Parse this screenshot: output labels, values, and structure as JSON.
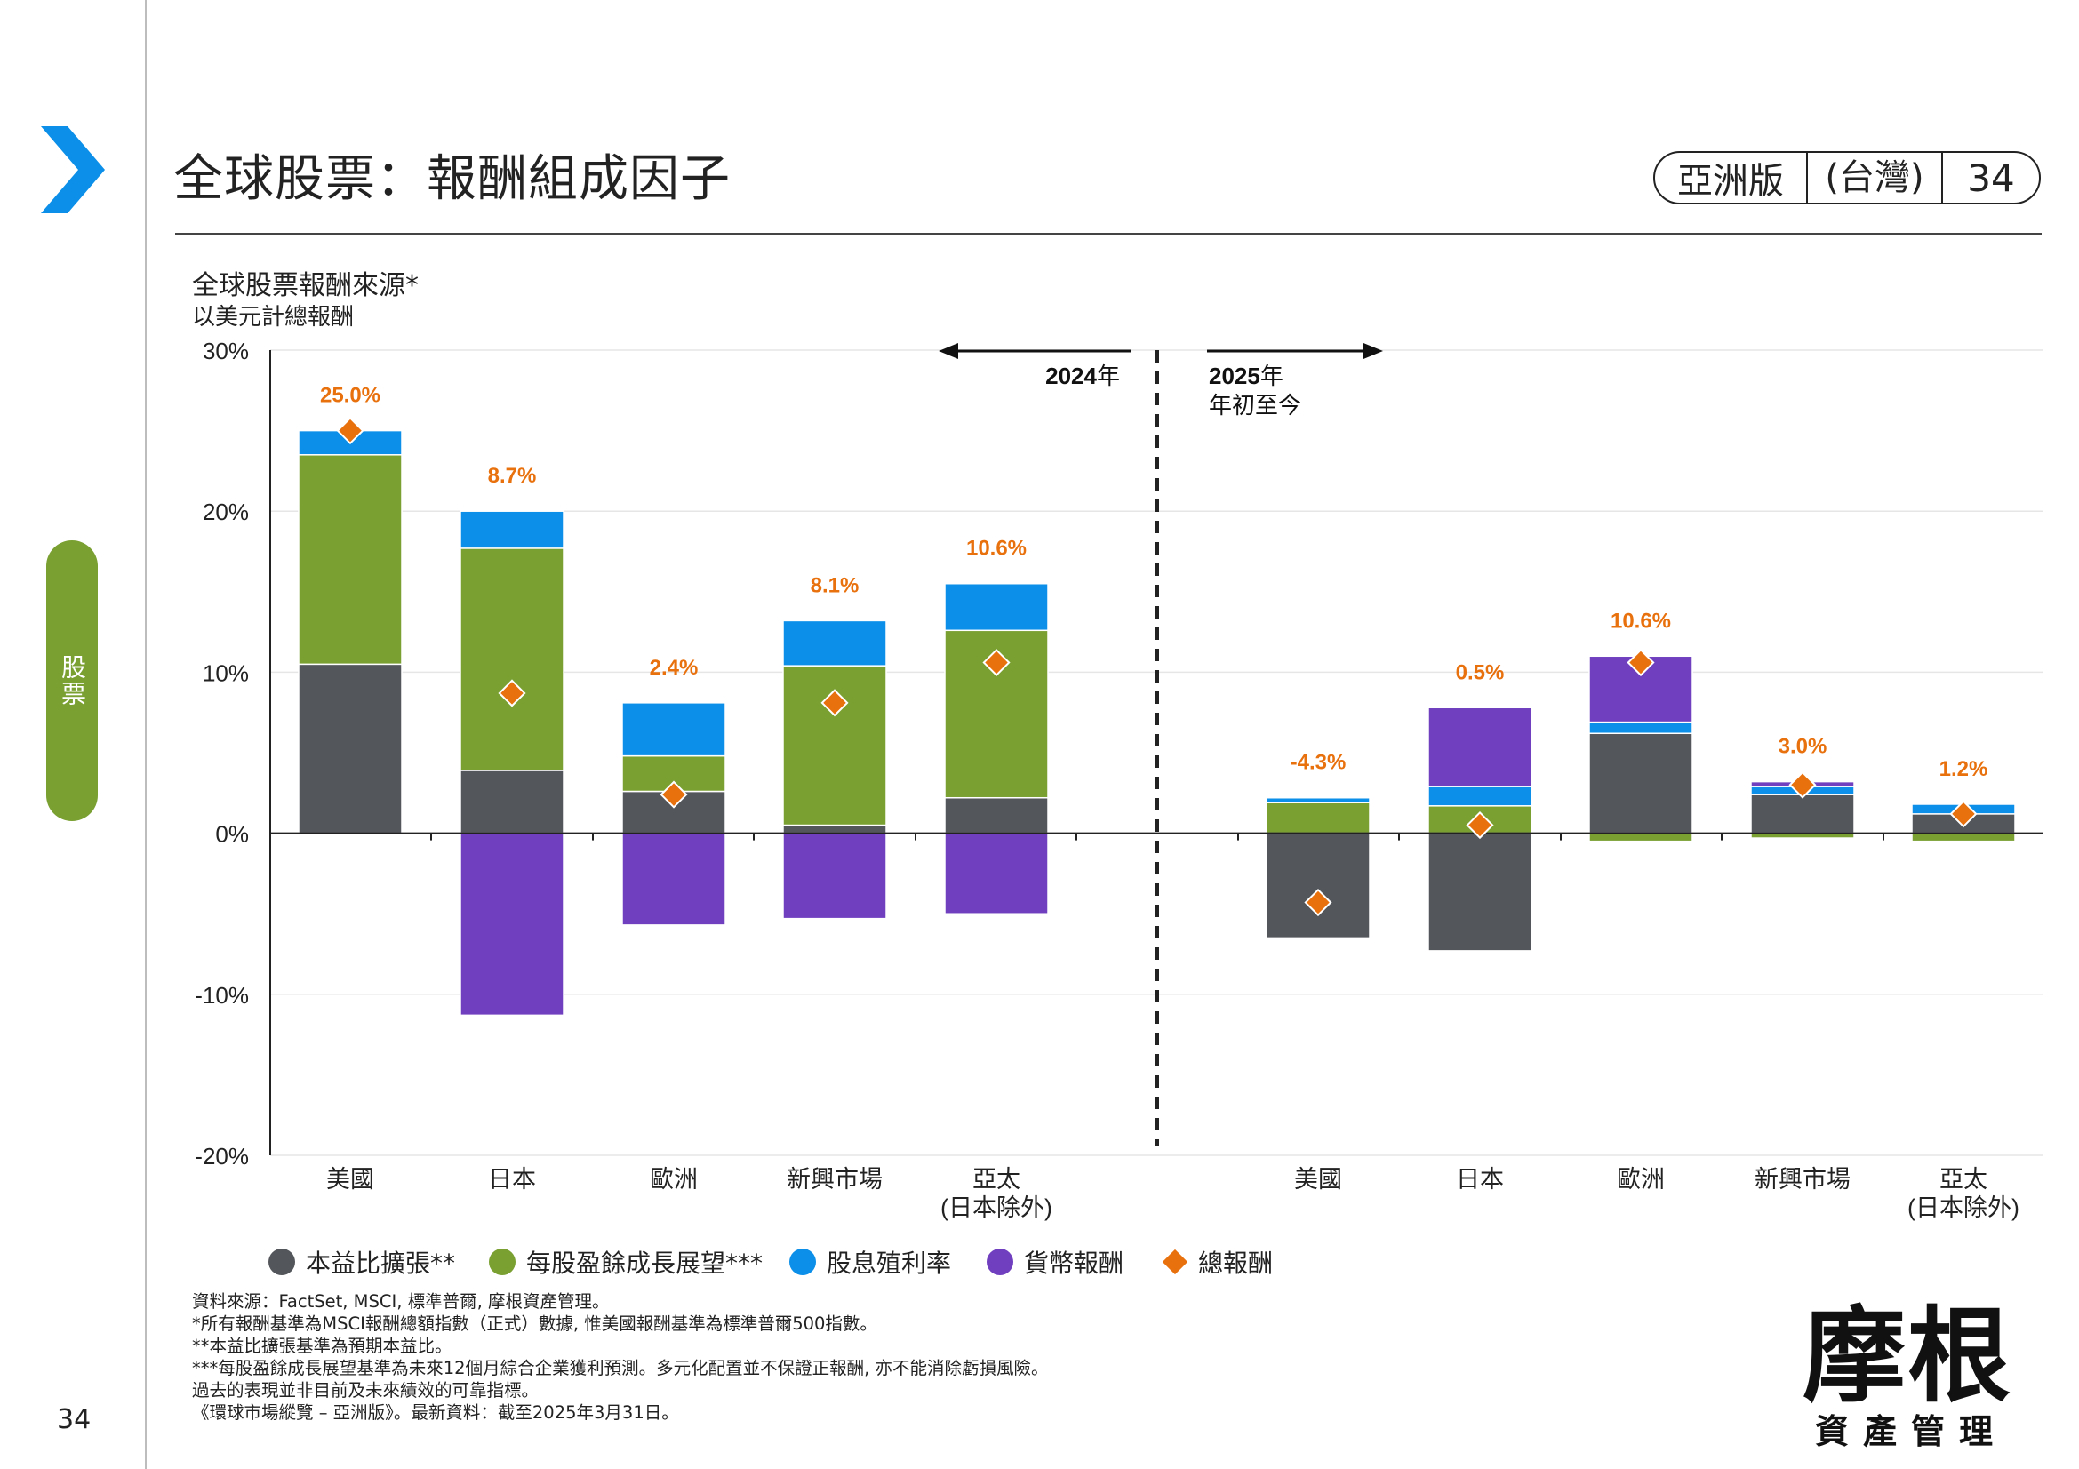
{
  "page": {
    "title": "全球股票：報酬組成因子",
    "section": "股票",
    "page_number": "34",
    "badge": {
      "edition": "亞洲版",
      "region": "(台灣)",
      "page": "34"
    },
    "notes": [
      "資料來源：FactSet,  MSCI,  標準普爾,  摩根資產管理。",
      "*所有報酬基準為MSCI報酬總額指數（正式）數據,  惟美國報酬基準為標準普爾500指數。",
      "**本益比擴張基準為預期本益比。",
      "***每股盈餘成長展望基準為未來12個月綜合企業獲利預測。多元化配置並不保證正報酬,  亦不能消除虧損風險。",
      "過去的表現並非目前及未來績效的可靠指標。",
      "《環球市場縱覽  –  亞洲版》。最新資料：截至2025年3月31日。"
    ],
    "logo": {
      "main": "摩根",
      "sub": "資產管理"
    }
  },
  "colors": {
    "accent_blue": "#0b8fe8",
    "pe": "#53565a",
    "eps": "#7aa032",
    "dividend": "#0b8fe8",
    "currency": "#6f3fbf",
    "total": "#e8700d",
    "pill": "#7aa032"
  },
  "icons": {
    "chevron": "chevron-right-icon"
  },
  "chart_data": {
    "type": "bar",
    "title": "全球股票報酬來源*",
    "subtitle": "以美元計總報酬",
    "y_ticks": [
      "30%",
      "20%",
      "10%",
      "0%",
      "-10%",
      "-20%"
    ],
    "ylim": [
      -20,
      30
    ],
    "grid": true,
    "legend_position": "bottom",
    "periods": [
      {
        "label_bold": "2024",
        "label_suffix": "年",
        "sub": ""
      },
      {
        "label_bold": "2025",
        "label_suffix": "年",
        "sub": "年初至今"
      }
    ],
    "categories": [
      "美國",
      "日本",
      "歐洲",
      "新興市場",
      "亞太\n(日本除外)",
      "美國",
      "日本",
      "歐洲",
      "新興市場",
      "亞太\n(日本除外)"
    ],
    "series": [
      {
        "name": "本益比擴張**",
        "color": "#53565a",
        "values": [
          10.5,
          3.9,
          2.6,
          0.5,
          2.2,
          -6.5,
          -7.3,
          6.2,
          2.4,
          1.2
        ]
      },
      {
        "name": "每股盈餘成長展望***",
        "color": "#7aa032",
        "values": [
          13.0,
          13.8,
          2.2,
          9.9,
          10.4,
          1.9,
          1.7,
          -0.5,
          -0.3,
          -0.5
        ]
      },
      {
        "name": "股息殖利率",
        "color": "#0b8fe8",
        "values": [
          1.5,
          2.3,
          3.3,
          2.8,
          2.9,
          0.3,
          1.2,
          0.7,
          0.5,
          0.6
        ]
      },
      {
        "name": "貨幣報酬",
        "color": "#6f3fbf",
        "values": [
          0.0,
          -11.3,
          -5.7,
          -5.3,
          -5.0,
          0.0,
          4.9,
          4.1,
          0.3,
          0.0
        ]
      }
    ],
    "total": {
      "name": "總報酬",
      "color": "#e8700d",
      "values": [
        25.0,
        8.7,
        2.4,
        8.1,
        10.6,
        -4.3,
        0.5,
        10.6,
        3.0,
        1.2
      ],
      "labels": [
        "25.0%",
        "8.7%",
        "2.4%",
        "8.1%",
        "10.6%",
        "-4.3%",
        "0.5%",
        "10.6%",
        "3.0%",
        "1.2%"
      ]
    }
  }
}
